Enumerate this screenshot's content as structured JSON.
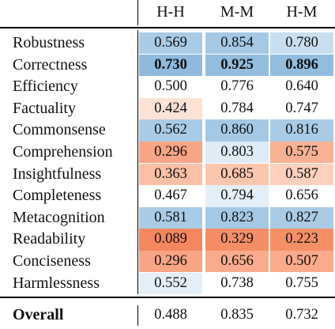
{
  "table": {
    "columns": [
      "H-H",
      "M-M",
      "H-M"
    ],
    "rows": [
      {
        "label": "Robustness",
        "values": [
          "0.569",
          "0.854",
          "0.780"
        ],
        "colors": [
          "#a9cbe6",
          "#a5c9e5",
          "#c9dff0"
        ]
      },
      {
        "label": "Correctness",
        "values": [
          "0.730",
          "0.925",
          "0.896"
        ],
        "colors": [
          "#8fbadd",
          "#93bddf",
          "#93bddf"
        ],
        "bold": true
      },
      {
        "label": "Efficiency",
        "values": [
          "0.500",
          "0.776",
          "0.640"
        ],
        "colors": [
          "#ffffff",
          "#ffffff",
          "#ffffff"
        ]
      },
      {
        "label": "Factuality",
        "values": [
          "0.424",
          "0.784",
          "0.747"
        ],
        "colors": [
          "#fde2d6",
          "#ffffff",
          "#ffffff"
        ]
      },
      {
        "label": "Commonsense",
        "values": [
          "0.562",
          "0.860",
          "0.816"
        ],
        "colors": [
          "#a9cbe6",
          "#a5c9e5",
          "#a9cbe6"
        ]
      },
      {
        "label": "Comprehension",
        "values": [
          "0.296",
          "0.803",
          "0.575"
        ],
        "colors": [
          "#f8a585",
          "#dfebf5",
          "#f9b193"
        ]
      },
      {
        "label": "Insightfulness",
        "values": [
          "0.363",
          "0.685",
          "0.587"
        ],
        "colors": [
          "#fbc0a6",
          "#fbc6ae",
          "#fcd0bc"
        ]
      },
      {
        "label": "Completeness",
        "values": [
          "0.467",
          "0.794",
          "0.656"
        ],
        "colors": [
          "#ffffff",
          "#e5eff8",
          "#ffffff"
        ]
      },
      {
        "label": "Metacognition",
        "values": [
          "0.581",
          "0.823",
          "0.827"
        ],
        "colors": [
          "#a9cbe6",
          "#a5c9e5",
          "#a9cbe6"
        ]
      },
      {
        "label": "Readability",
        "values": [
          "0.089",
          "0.329",
          "0.223"
        ],
        "colors": [
          "#f4875e",
          "#f58d66",
          "#f68e66"
        ]
      },
      {
        "label": "Conciseness",
        "values": [
          "0.296",
          "0.656",
          "0.507"
        ],
        "colors": [
          "#f8a585",
          "#f9ac8d",
          "#f9ab8b"
        ]
      },
      {
        "label": "Harmlessness",
        "values": [
          "0.552",
          "0.738",
          "0.755"
        ],
        "colors": [
          "#e5eff8",
          "#ffffff",
          "#ffffff"
        ]
      }
    ],
    "overall": {
      "label": "Overall",
      "values": [
        "0.488",
        "0.835",
        "0.732"
      ]
    }
  }
}
